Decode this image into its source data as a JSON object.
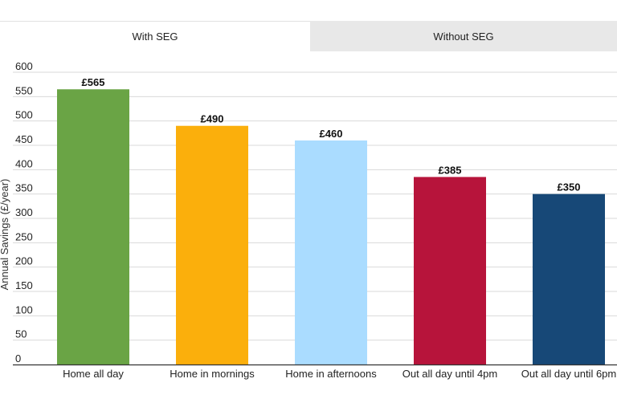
{
  "tabs": [
    {
      "label": "With SEG",
      "active": true
    },
    {
      "label": "Without SEG",
      "active": false
    }
  ],
  "chart_data": {
    "type": "bar",
    "categories": [
      "Home all day",
      "Home in mornings",
      "Home in afternoons",
      "Out all day until 4pm",
      "Out all day until 6pm"
    ],
    "values": [
      565,
      490,
      460,
      385,
      350
    ],
    "data_labels": [
      "£565",
      "£490",
      "£460",
      "£385",
      "£350"
    ],
    "colors": [
      "#6aa445",
      "#fbaf0c",
      "#aadcff",
      "#b7143b",
      "#174877"
    ],
    "title": "",
    "xlabel": "",
    "ylabel": "Annual Savings (£/year)",
    "ylim": [
      0,
      600
    ],
    "yticks": [
      0,
      50,
      100,
      150,
      200,
      250,
      300,
      350,
      400,
      450,
      500,
      550,
      600
    ],
    "grid": true
  }
}
